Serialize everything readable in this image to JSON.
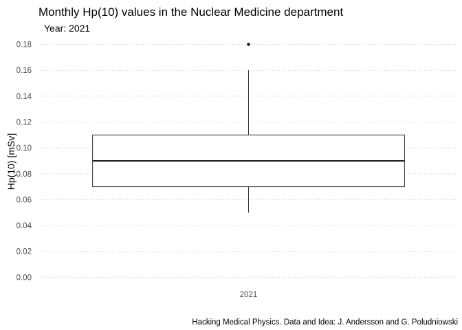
{
  "chart_data": {
    "type": "box",
    "title": "Monthly Hp(10) values in the Nuclear Medicine department",
    "subtitle": "Year: 2021",
    "xlabel": "",
    "ylabel": "Hp(10) [mSv]",
    "caption": "Hacking Medical Physics. Data and Idea: J. Andersson and G. Poludniowski",
    "ylim": [
      -0.003,
      0.184
    ],
    "yticks": [
      0.0,
      0.02,
      0.04,
      0.06,
      0.08,
      0.1,
      0.12,
      0.14,
      0.16,
      0.18
    ],
    "ytick_labels": [
      "0.00",
      "0.02",
      "0.04",
      "0.06",
      "0.08",
      "0.10",
      "0.12",
      "0.14",
      "0.16",
      "0.18"
    ],
    "grid": true,
    "legend": "none",
    "categories": [
      "2021"
    ],
    "boxes": [
      {
        "category": "2021",
        "min": 0.05,
        "q1": 0.07,
        "median": 0.09,
        "q3": 0.11,
        "max": 0.16,
        "outliers": [
          0.18
        ]
      }
    ]
  }
}
